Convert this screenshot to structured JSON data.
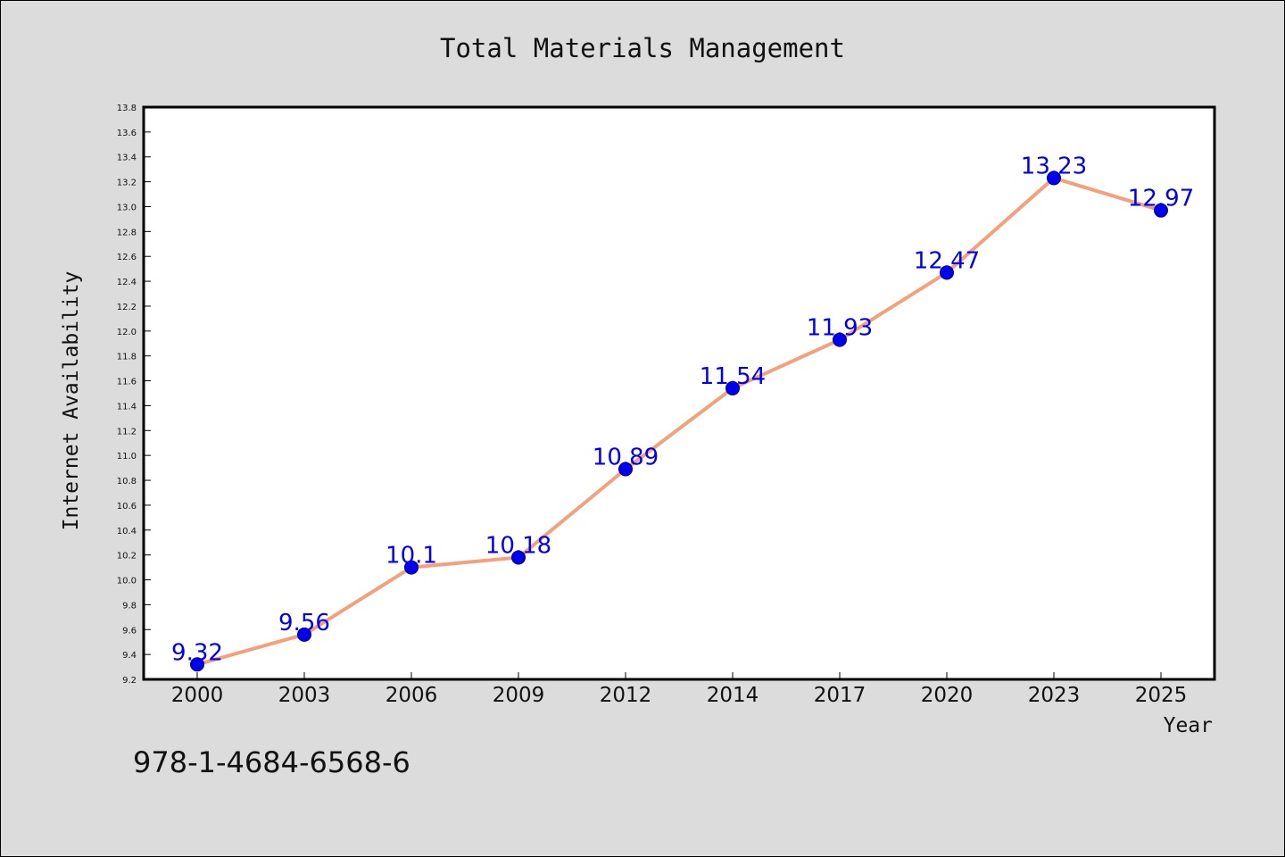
{
  "chart_data": {
    "type": "line",
    "title": "Total Materials Management",
    "xlabel": "Year",
    "ylabel": "Internet Availability",
    "categories": [
      "2000",
      "2003",
      "2006",
      "2009",
      "2012",
      "2014",
      "2017",
      "2020",
      "2023",
      "2025"
    ],
    "series": [
      {
        "values": [
          9.32,
          9.56,
          10.1,
          10.18,
          10.89,
          11.54,
          11.93,
          12.47,
          13.23,
          12.97
        ],
        "value_labels": [
          "9.32",
          "9.56",
          "10.1",
          "10.18",
          "10.89",
          "11.54",
          "11.93",
          "12.47",
          "13.23",
          "12.97"
        ],
        "line_color": "#f4a07a",
        "marker_color": "#0000ee",
        "marker_edge_color": "#000080",
        "label_color": "#0000ee"
      }
    ],
    "ylim": [
      9.2,
      13.8
    ],
    "yticks": [
      "9.2",
      "9.4",
      "9.6",
      "9.8",
      "10.0",
      "10.2",
      "10.4",
      "10.6",
      "10.8",
      "11.0",
      "11.2",
      "11.4",
      "11.6",
      "11.8",
      "12.0",
      "12.2",
      "12.4",
      "12.6",
      "12.8",
      "13.0",
      "13.2",
      "13.4",
      "13.6",
      "13.8"
    ],
    "grid": false,
    "legend": "none"
  },
  "footer": {
    "isbn": "978-1-4684-6568-6"
  },
  "colors": {
    "figure_background": "#dcdcdc",
    "plot_background": "#ffffff",
    "axis": "#000000"
  }
}
